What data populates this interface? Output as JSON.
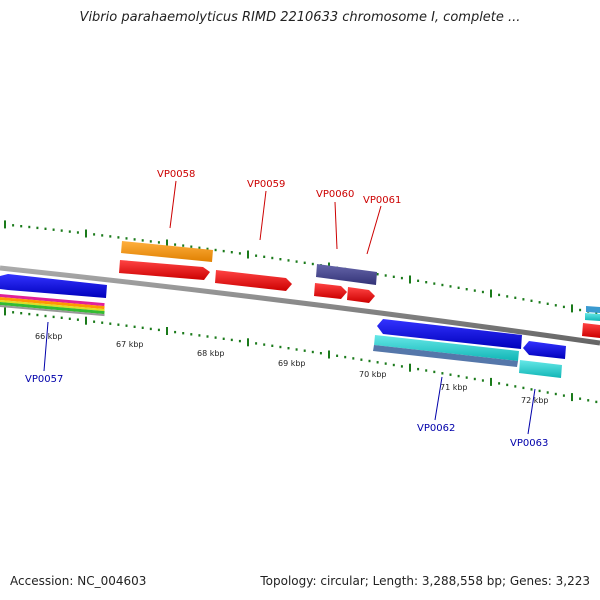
{
  "title": "Vibrio parahaemolyticus RIMD 2210633 chromosome I, complete ...",
  "footer": {
    "accession": "Accession: NC_004603",
    "summary": "Topology: circular; Length: 3,288,558 bp; Genes: 3,223"
  },
  "colors": {
    "backbone": "#808080",
    "tick": "#1a7a1a",
    "forward_label": "#cc0000",
    "reverse_label": "#0000aa"
  },
  "tick_labels": [
    "66 kbp",
    "67 kbp",
    "68 kbp",
    "69 kbp",
    "70 kbp",
    "71 kbp",
    "72 kbp"
  ],
  "gene_labels": {
    "forward": [
      "VP0058",
      "VP0059",
      "VP0060",
      "VP0061"
    ],
    "reverse": [
      "VP0057",
      "VP0062",
      "VP0063"
    ]
  }
}
